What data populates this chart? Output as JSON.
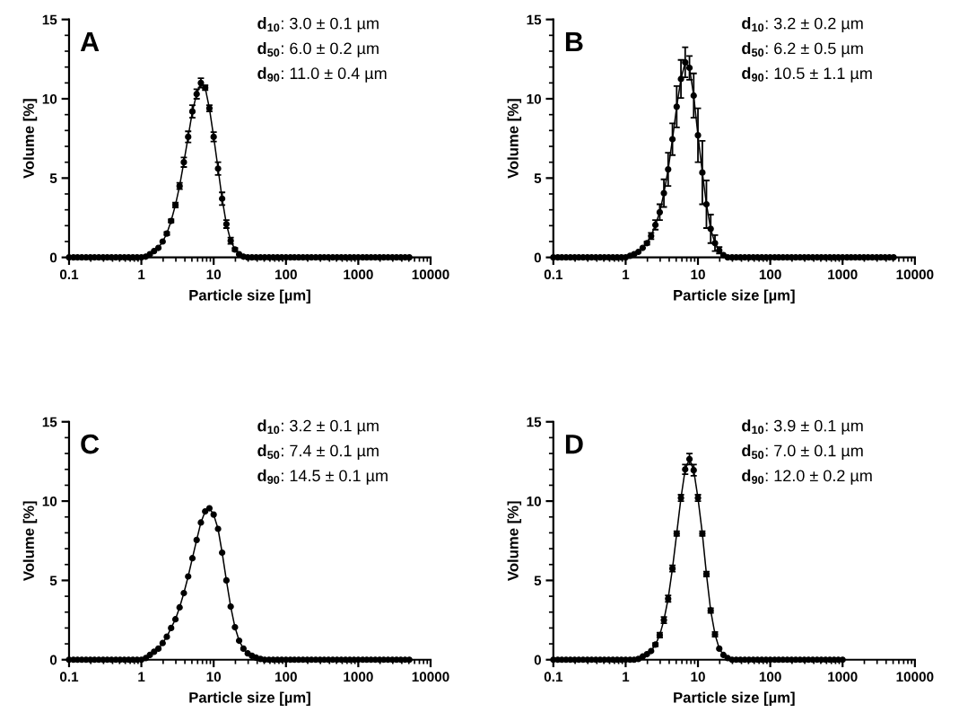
{
  "chart_data": [
    {
      "type": "line",
      "title": "A",
      "xlabel": "Particle size [µm]",
      "ylabel": "Volume [%]",
      "log": "x",
      "marker": "circle",
      "line_style": "solid",
      "xlim": [
        0.1,
        10000
      ],
      "xticks": [
        0.1,
        1,
        10,
        100,
        1000,
        10000
      ],
      "ylim": [
        0,
        15
      ],
      "yticks": [
        0,
        5,
        10,
        15
      ],
      "annotations": [
        "d$_{10}$: 3.0 ± 0.1 µm",
        "d$_{50}$: 6.0 ± 0.2 µm",
        "d$_{90}$: 11.0 ± 0.4 µm"
      ],
      "x": [
        0.1,
        0.115,
        0.131,
        0.15,
        0.172,
        0.197,
        0.225,
        0.258,
        0.296,
        0.338,
        0.387,
        0.444,
        0.508,
        0.582,
        0.666,
        0.763,
        0.873,
        1,
        1.15,
        1.31,
        1.5,
        1.72,
        1.97,
        2.25,
        2.58,
        2.96,
        3.38,
        3.87,
        4.44,
        5.08,
        5.82,
        6.66,
        7.63,
        8.73,
        10,
        11.5,
        13.1,
        15,
        17.2,
        19.7,
        22.5,
        25.8,
        29.6,
        33.8,
        38.7,
        44.4,
        50.8,
        58.2,
        66.6,
        76.3,
        87.3,
        100,
        115,
        131,
        150,
        172,
        197,
        225,
        258,
        296,
        338,
        387,
        444,
        508,
        582,
        666,
        763,
        873,
        1000,
        1150,
        1310,
        1500,
        1720,
        1970,
        2250,
        2580,
        2960,
        3380,
        3870,
        4440,
        5080
      ],
      "series": [
        {
          "color": "#000000",
          "values": [
            0,
            0,
            0,
            0,
            0,
            0,
            0,
            0,
            0,
            0,
            0,
            0,
            0,
            0,
            0,
            0,
            0,
            0,
            0.05,
            0.2,
            0.4,
            0.6,
            1.0,
            1.5,
            2.3,
            3.3,
            4.5,
            6.0,
            7.6,
            9.2,
            10.3,
            11.0,
            10.7,
            9.4,
            7.6,
            5.6,
            3.7,
            2.1,
            1.05,
            0.5,
            0.2,
            0.05,
            0,
            0,
            0,
            0,
            0,
            0,
            0,
            0,
            0,
            0,
            0,
            0,
            0,
            0,
            0,
            0,
            0,
            0,
            0,
            0,
            0,
            0,
            0,
            0,
            0,
            0,
            0,
            0,
            0,
            0,
            0,
            0,
            0,
            0,
            0,
            0,
            0,
            0,
            0
          ],
          "errors": [
            null,
            null,
            null,
            null,
            null,
            null,
            null,
            null,
            null,
            null,
            null,
            null,
            null,
            null,
            null,
            null,
            null,
            null,
            null,
            null,
            null,
            null,
            null,
            0.1,
            0.1,
            0.15,
            0.2,
            0.3,
            0.35,
            0.4,
            0.3,
            0.3,
            0.15,
            0.2,
            0.3,
            0.4,
            0.4,
            0.25,
            0.2,
            0.1,
            null,
            null,
            null,
            null,
            null,
            null,
            null,
            null,
            null,
            null,
            null,
            null,
            null,
            null,
            null,
            null,
            null,
            null,
            null,
            null,
            null,
            null,
            null,
            null,
            null,
            null,
            null,
            null,
            null,
            null,
            null,
            null,
            null,
            null,
            null,
            null,
            null,
            null,
            null,
            null,
            null
          ]
        }
      ]
    },
    {
      "type": "line",
      "title": "B",
      "xlabel": "Particle size [µm]",
      "ylabel": "Volume [%]",
      "log": "x",
      "marker": "circle",
      "line_style": "solid",
      "xlim": [
        0.1,
        10000
      ],
      "xticks": [
        0.1,
        1,
        10,
        100,
        1000,
        10000
      ],
      "ylim": [
        0,
        15
      ],
      "yticks": [
        0,
        5,
        10,
        15
      ],
      "annotations": [
        "d$_{10}$: 3.2 ± 0.2 µm",
        "d$_{50}$: 6.2 ± 0.5 µm",
        "d$_{90}$: 10.5 ± 1.1 µm"
      ],
      "x": [
        0.1,
        0.115,
        0.131,
        0.15,
        0.172,
        0.197,
        0.225,
        0.258,
        0.296,
        0.338,
        0.387,
        0.444,
        0.508,
        0.582,
        0.666,
        0.763,
        0.873,
        1,
        1.15,
        1.31,
        1.5,
        1.72,
        1.97,
        2.25,
        2.58,
        2.96,
        3.38,
        3.87,
        4.44,
        5.08,
        5.82,
        6.66,
        7.63,
        8.73,
        10,
        11.5,
        13.1,
        15,
        17.2,
        19.7,
        22.5,
        25.8,
        29.6,
        33.8,
        38.7,
        44.4,
        50.8,
        58.2,
        66.6,
        76.3,
        87.3,
        100,
        115,
        131,
        150,
        172,
        197,
        225,
        258,
        296,
        338,
        387,
        444,
        508,
        582,
        666,
        763,
        873,
        1000,
        1150,
        1310,
        1500,
        1720,
        1970,
        2250,
        2580,
        2960,
        3380,
        3870,
        4440,
        5080
      ],
      "series": [
        {
          "color": "#000000",
          "values": [
            0,
            0,
            0,
            0,
            0,
            0,
            0,
            0,
            0,
            0,
            0,
            0,
            0,
            0,
            0,
            0,
            0,
            0,
            0.1,
            0.2,
            0.35,
            0.6,
            0.9,
            1.35,
            2.05,
            2.85,
            4.05,
            5.55,
            7.45,
            9.5,
            11.25,
            12.3,
            11.95,
            10.2,
            7.7,
            5.35,
            3.35,
            1.8,
            0.9,
            0.45,
            0.15,
            0,
            0,
            0,
            0,
            0,
            0,
            0,
            0,
            0,
            0,
            0,
            0,
            0,
            0,
            0,
            0,
            0,
            0,
            0,
            0,
            0,
            0,
            0,
            0,
            0,
            0,
            0,
            0,
            0,
            0,
            0,
            0,
            0,
            0,
            0,
            0,
            0,
            0,
            0,
            0
          ],
          "errors": [
            null,
            null,
            null,
            null,
            null,
            null,
            null,
            null,
            null,
            null,
            null,
            null,
            null,
            null,
            null,
            null,
            null,
            null,
            null,
            null,
            null,
            null,
            0.1,
            0.2,
            0.3,
            0.5,
            0.87,
            1.05,
            1.0,
            1.3,
            1.2,
            0.95,
            0.75,
            1.4,
            1.7,
            2.0,
            1.5,
            0.9,
            0.5,
            0.2,
            null,
            null,
            null,
            null,
            null,
            null,
            null,
            null,
            null,
            null,
            null,
            null,
            null,
            null,
            null,
            null,
            null,
            null,
            null,
            null,
            null,
            null,
            null,
            null,
            null,
            null,
            null,
            null,
            null,
            null,
            null,
            null,
            null,
            null,
            null,
            null,
            null,
            null,
            null,
            null,
            null
          ]
        }
      ]
    },
    {
      "type": "line",
      "title": "C",
      "xlabel": "Particle size [µm]",
      "ylabel": "Volume [%]",
      "log": "x",
      "marker": "circle",
      "line_style": "solid",
      "xlim": [
        0.1,
        10000
      ],
      "xticks": [
        0.1,
        1,
        10,
        100,
        1000,
        10000
      ],
      "ylim": [
        0,
        15
      ],
      "yticks": [
        0,
        5,
        10,
        15
      ],
      "annotations": [
        "d$_{10}$: 3.2 ± 0.1 µm",
        "d$_{50}$: 7.4 ± 0.1 µm",
        "d$_{90}$: 14.5 ± 0.1 µm"
      ],
      "x": [
        0.1,
        0.115,
        0.131,
        0.15,
        0.172,
        0.197,
        0.225,
        0.258,
        0.296,
        0.338,
        0.387,
        0.444,
        0.508,
        0.582,
        0.666,
        0.763,
        0.873,
        1,
        1.15,
        1.31,
        1.5,
        1.72,
        1.97,
        2.25,
        2.58,
        2.96,
        3.38,
        3.87,
        4.44,
        5.08,
        5.82,
        6.66,
        7.63,
        8.73,
        10,
        11.5,
        13.1,
        15,
        17.2,
        19.7,
        22.5,
        25.8,
        29.6,
        33.8,
        38.7,
        44.4,
        50.8,
        58.2,
        66.6,
        76.3,
        87.3,
        100,
        115,
        131,
        150,
        172,
        197,
        225,
        258,
        296,
        338,
        387,
        444,
        508,
        582,
        666,
        763,
        873,
        1000,
        1150,
        1310,
        1500,
        1720,
        1970,
        2250,
        2580,
        2960,
        3380,
        3870,
        4440,
        5080
      ],
      "series": [
        {
          "color": "#000000",
          "values": [
            0,
            0,
            0,
            0,
            0,
            0,
            0,
            0,
            0,
            0,
            0,
            0,
            0,
            0,
            0,
            0,
            0,
            0,
            0.1,
            0.3,
            0.5,
            0.7,
            1.05,
            1.45,
            2.0,
            2.55,
            3.3,
            4.2,
            5.25,
            6.4,
            7.55,
            8.65,
            9.35,
            9.55,
            9.15,
            8.25,
            6.75,
            5.0,
            3.35,
            2.05,
            1.2,
            0.7,
            0.4,
            0.25,
            0.13,
            0.05,
            0,
            0,
            0,
            0,
            0,
            0,
            0,
            0,
            0,
            0,
            0,
            0,
            0,
            0,
            0,
            0,
            0,
            0,
            0,
            0,
            0,
            0,
            0,
            0,
            0,
            0,
            0,
            0,
            0,
            0,
            0,
            0,
            0,
            0,
            0
          ]
        }
      ]
    },
    {
      "type": "line",
      "title": "D",
      "xlabel": "Particle size [µm]",
      "ylabel": "Volume [%]",
      "log": "x",
      "marker": "circle",
      "line_style": "solid",
      "xlim": [
        0.1,
        10000
      ],
      "xticks": [
        0.1,
        1,
        10,
        100,
        1000,
        10000
      ],
      "ylim": [
        0,
        15
      ],
      "yticks": [
        0,
        5,
        10,
        15
      ],
      "annotations": [
        "d$_{10}$: 3.9 ± 0.1 µm",
        "d$_{50}$: 7.0 ± 0.1 µm",
        "d$_{90}$: 12.0 ± 0.2 µm"
      ],
      "x": [
        0.1,
        0.115,
        0.131,
        0.15,
        0.172,
        0.197,
        0.225,
        0.258,
        0.296,
        0.338,
        0.387,
        0.444,
        0.508,
        0.582,
        0.666,
        0.763,
        0.873,
        1,
        1.15,
        1.31,
        1.5,
        1.72,
        1.97,
        2.25,
        2.58,
        2.96,
        3.38,
        3.87,
        4.44,
        5.08,
        5.82,
        6.66,
        7.63,
        8.73,
        10,
        11.5,
        13.1,
        15,
        17.2,
        19.7,
        22.5,
        25.8,
        29.6,
        33.8,
        38.7,
        44.4,
        50.8,
        58.2,
        66.6,
        76.3,
        87.3,
        100,
        115,
        131,
        150,
        172,
        197,
        225,
        258,
        296,
        338,
        387,
        444,
        508,
        582,
        666,
        763,
        873,
        1000
      ],
      "series": [
        {
          "color": "#000000",
          "values": [
            0,
            0,
            0,
            0,
            0,
            0,
            0,
            0,
            0,
            0,
            0,
            0,
            0,
            0,
            0,
            0,
            0,
            0,
            0,
            0,
            0.05,
            0.2,
            0.35,
            0.55,
            0.95,
            1.55,
            2.5,
            3.85,
            5.75,
            7.95,
            10.2,
            12.0,
            12.65,
            11.95,
            10.2,
            7.95,
            5.4,
            3.1,
            1.6,
            0.7,
            0.3,
            0.1,
            0,
            0,
            0,
            0,
            0,
            0,
            0,
            0,
            0,
            0,
            0,
            0,
            0,
            0,
            0,
            0,
            0,
            0,
            0,
            0,
            0,
            0,
            0,
            0,
            0,
            0,
            0
          ],
          "errors": [
            null,
            null,
            null,
            null,
            null,
            null,
            null,
            null,
            null,
            null,
            null,
            null,
            null,
            null,
            null,
            null,
            null,
            null,
            null,
            null,
            null,
            null,
            null,
            null,
            0.1,
            0.15,
            0.2,
            0.2,
            0.2,
            0.15,
            0.2,
            0.3,
            0.35,
            0.35,
            0.2,
            0.15,
            0.15,
            0.15,
            0.15,
            null,
            null,
            null,
            null,
            null,
            null,
            null,
            null,
            null,
            null,
            null,
            null,
            null,
            null,
            null,
            null,
            null,
            null,
            null,
            null,
            null,
            null,
            null,
            null,
            null,
            null,
            null,
            null,
            null,
            null
          ]
        }
      ]
    }
  ]
}
